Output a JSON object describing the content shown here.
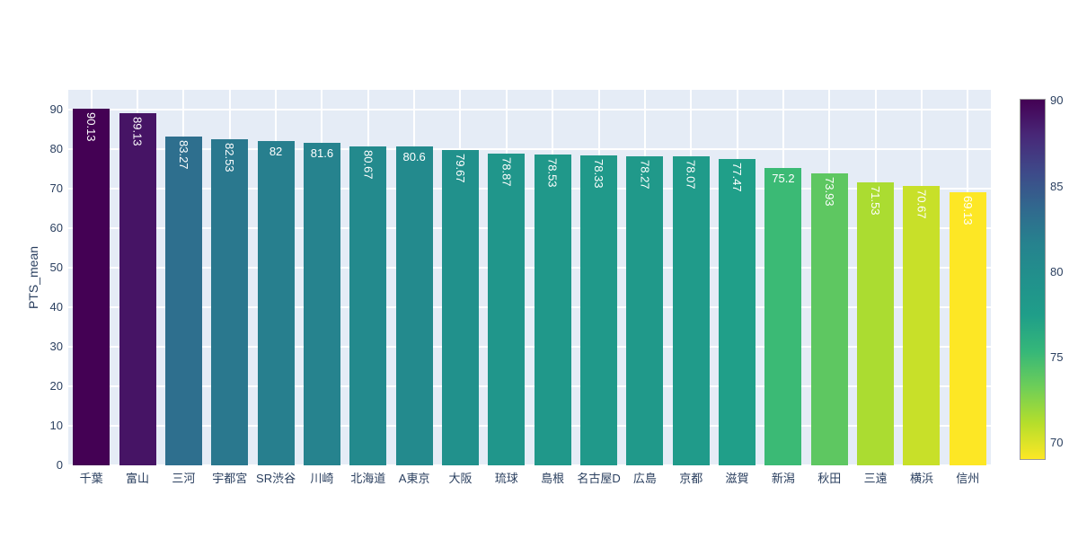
{
  "chart_data": {
    "type": "bar",
    "title": "",
    "xlabel": "",
    "ylabel": "PTS_mean",
    "categories": [
      "千葉",
      "富山",
      "三河",
      "宇都宮",
      "SR渋谷",
      "川崎",
      "北海道",
      "A東京",
      "大阪",
      "琉球",
      "島根",
      "名古屋D",
      "広島",
      "京都",
      "滋賀",
      "新潟",
      "秋田",
      "三遠",
      "横浜",
      "信州"
    ],
    "values": [
      90.13,
      89.13,
      83.27,
      82.53,
      82,
      81.6,
      80.67,
      80.6,
      79.67,
      78.87,
      78.53,
      78.33,
      78.27,
      78.07,
      77.47,
      75.2,
      73.93,
      71.53,
      70.67,
      69.13
    ],
    "value_labels": [
      "90.13",
      "89.13",
      "83.27",
      "82.53",
      "82",
      "81.6",
      "80.67",
      "80.6",
      "79.67",
      "78.87",
      "78.53",
      "78.33",
      "78.27",
      "78.07",
      "77.47",
      "75.2",
      "73.93",
      "71.53",
      "70.67",
      "69.13"
    ],
    "bar_colors": [
      "#440154",
      "#461465",
      "#2e6f8e",
      "#2a788e",
      "#277f8e",
      "#26838e",
      "#238a8d",
      "#238a8d",
      "#21918c",
      "#20968b",
      "#20988a",
      "#20998a",
      "#20998a",
      "#209b8a",
      "#209f89",
      "#3bba75",
      "#5ec761",
      "#abdc31",
      "#c8e029",
      "#fde725"
    ],
    "y_ticks": [
      0,
      10,
      20,
      30,
      40,
      50,
      60,
      70,
      80,
      90
    ],
    "ylim": [
      0,
      94.9
    ],
    "grid": true,
    "legend_position": "none",
    "colorbar": {
      "min": 69.13,
      "max": 90.13,
      "ticks": [
        90,
        85,
        80,
        75,
        70
      ],
      "colorscale": "viridis-reversed",
      "stops": [
        "#440154",
        "#482878",
        "#3e4989",
        "#31688e",
        "#26828e",
        "#21918c",
        "#1f9e89",
        "#35b779",
        "#6ece58",
        "#b5de2b",
        "#fde725"
      ]
    },
    "colors": {
      "page_bg": "#ffffff",
      "plot_bg": "#e5ecf6",
      "gridline": "#ffffff",
      "axis_text": "#2a3f5f",
      "value_label_text": "#ffffff",
      "colorbar_border": "#999999"
    }
  }
}
